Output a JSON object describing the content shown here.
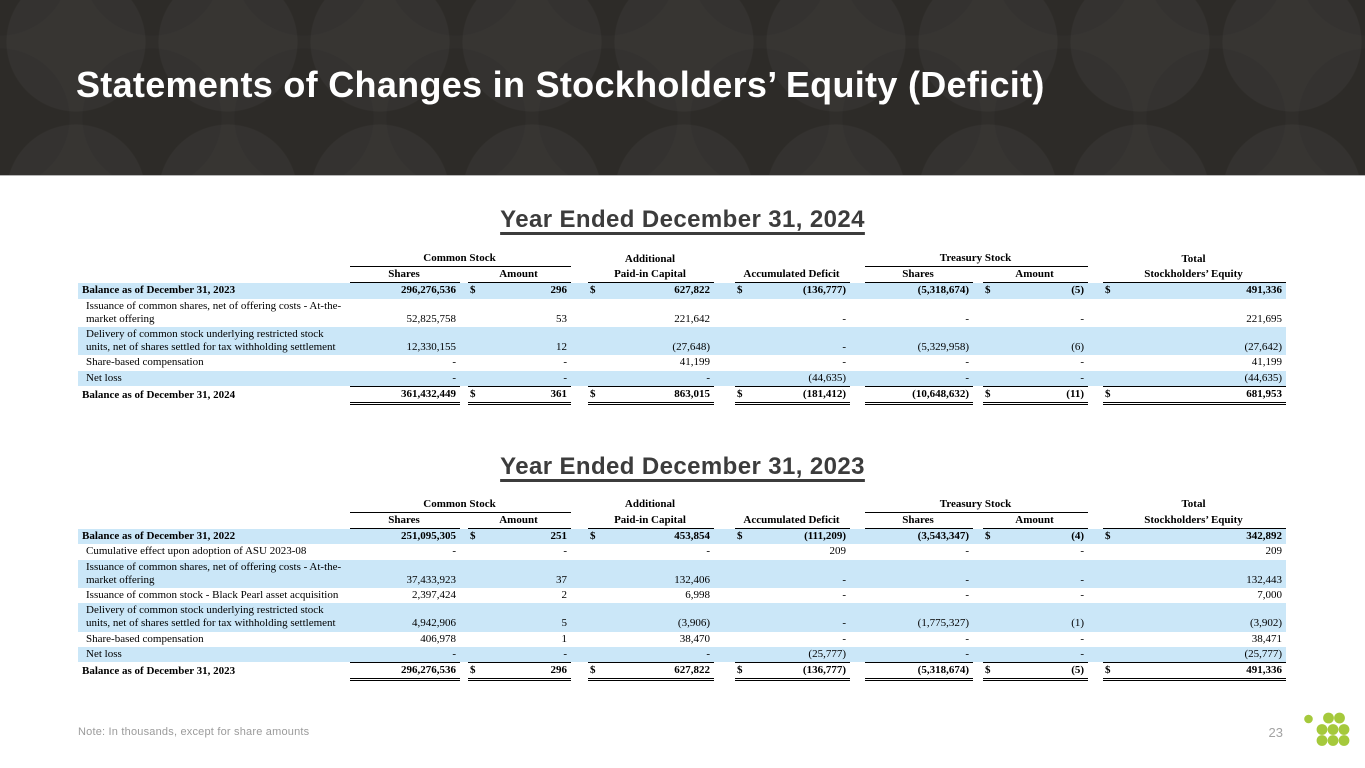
{
  "slide": {
    "title": "Statements of Changes in Stockholders’ Equity (Deficit)",
    "footnote": "Note: In thousands, except for share amounts",
    "page_number": "23"
  },
  "currency_symbol": "$",
  "colors": {
    "banner_bg": "#302e2b",
    "banner_text": "#ffffff",
    "section_heading": "#3c3c3c",
    "row_highlight": "#cbe7f8",
    "footnote_text": "#9b9b9b",
    "logo_green": "#a5c93c"
  },
  "table_headers": {
    "group_common": "Common Stock",
    "group_treasury": "Treasury Stock",
    "additional_line1": "Additional",
    "paid_in_capital": "Paid-in Capital",
    "accumulated_deficit": "Accumulated Deficit",
    "total_line1": "Total",
    "total_line2": "Stockholders’ Equity",
    "shares": "Shares",
    "amount": "Amount"
  },
  "tables": [
    {
      "title": "Year Ended December 31, 2024",
      "rows": [
        {
          "label": "Balance as of December 31, 2023",
          "bold": true,
          "dollar": true,
          "highlight": true,
          "cells": [
            "296,276,536",
            "296",
            "627,822",
            "(136,777)",
            "(5,318,674)",
            "(5)",
            "491,336"
          ]
        },
        {
          "label": "Issuance of common shares, net of offering costs - At-the-market offering",
          "cells": [
            "52,825,758",
            "53",
            "221,642",
            "-",
            "-",
            "-",
            "221,695"
          ]
        },
        {
          "label": "Delivery of common stock underlying restricted stock units, net of shares settled for tax withholding settlement",
          "highlight": true,
          "cells": [
            "12,330,155",
            "12",
            "(27,648)",
            "-",
            "(5,329,958)",
            "(6)",
            "(27,642)"
          ]
        },
        {
          "label": "Share-based compensation",
          "cells": [
            "-",
            "-",
            "41,199",
            "-",
            "-",
            "-",
            "41,199"
          ]
        },
        {
          "label": "Net loss",
          "highlight": true,
          "cells": [
            "-",
            "-",
            "-",
            "(44,635)",
            "-",
            "-",
            "(44,635)"
          ]
        },
        {
          "label": "Balance as of December 31, 2024",
          "bold": true,
          "dollar": true,
          "total": true,
          "cells": [
            "361,432,449",
            "361",
            "863,015",
            "(181,412)",
            "(10,648,632)",
            "(11)",
            "681,953"
          ]
        }
      ]
    },
    {
      "title": "Year Ended December 31, 2023",
      "rows": [
        {
          "label": "Balance as of December 31, 2022",
          "bold": true,
          "dollar": true,
          "highlight": true,
          "cells": [
            "251,095,305",
            "251",
            "453,854",
            "(111,209)",
            "(3,543,347)",
            "(4)",
            "342,892"
          ]
        },
        {
          "label": "Cumulative effect upon adoption of ASU 2023-08",
          "cells": [
            "-",
            "-",
            "-",
            "209",
            "-",
            "-",
            "209"
          ]
        },
        {
          "label": "Issuance of common shares, net of offering costs - At-the-market offering",
          "highlight": true,
          "cells": [
            "37,433,923",
            "37",
            "132,406",
            "-",
            "-",
            "-",
            "132,443"
          ]
        },
        {
          "label": "Issuance of common stock - Black Pearl asset acquisition",
          "cells": [
            "2,397,424",
            "2",
            "6,998",
            "-",
            "-",
            "-",
            "7,000"
          ]
        },
        {
          "label": "Delivery of common stock underlying restricted stock units, net of shares settled for tax withholding settlement",
          "highlight": true,
          "cells": [
            "4,942,906",
            "5",
            "(3,906)",
            "-",
            "(1,775,327)",
            "(1)",
            "(3,902)"
          ]
        },
        {
          "label": "Share-based compensation",
          "cells": [
            "406,978",
            "1",
            "38,470",
            "-",
            "-",
            "-",
            "38,471"
          ]
        },
        {
          "label": "Net loss",
          "highlight": true,
          "cells": [
            "-",
            "-",
            "-",
            "(25,777)",
            "-",
            "-",
            "(25,777)"
          ]
        },
        {
          "label": "Balance as of December 31, 2023",
          "bold": true,
          "dollar": true,
          "total": true,
          "cells": [
            "296,276,536",
            "296",
            "627,822",
            "(136,777)",
            "(5,318,674)",
            "(5)",
            "491,336"
          ]
        }
      ]
    }
  ]
}
